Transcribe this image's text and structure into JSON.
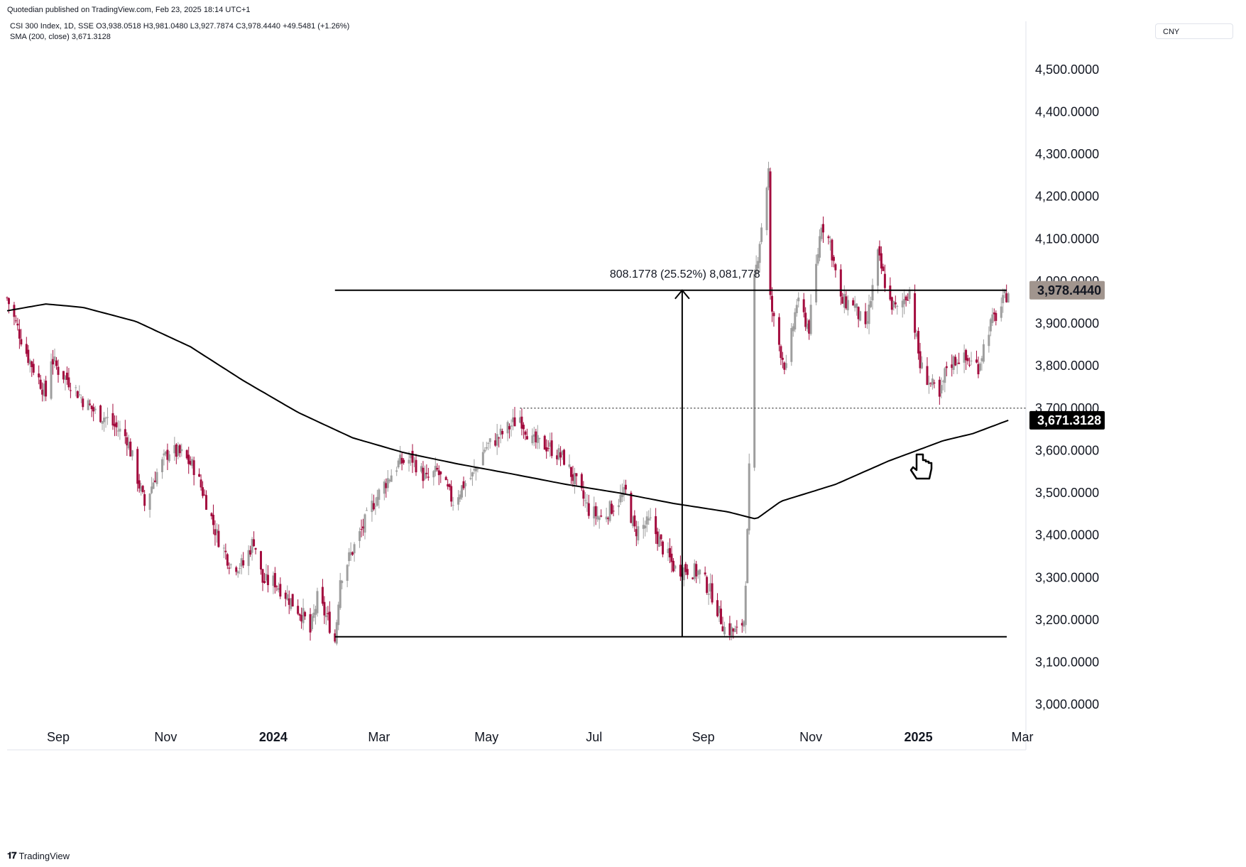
{
  "header": {
    "published": "Quotedian published on TradingView.com, Feb 23, 2025 18:14 UTC+1",
    "ohlc": "CSI 300 Index, 1D, SSE  O3,938.0518  H3,981.0480  L3,927.7874  C3,978.4440  +49.5481 (+1.26%)",
    "sma": "SMA (200, close)  3,671.3128"
  },
  "currency": "CNY",
  "footer": {
    "brand": "TradingView"
  },
  "colors": {
    "up": "#9e9e9e",
    "down": "#a30c3e",
    "line": "#000000",
    "price_label": "#a1958e"
  },
  "chart_data": {
    "type": "candlestick",
    "title": "CSI 300 Index, 1D, SSE",
    "ylim": [
      2950,
      4560
    ],
    "y_ticks": [
      "3,000.0000",
      "3,100.0000",
      "3,200.0000",
      "3,300.0000",
      "3,400.0000",
      "3,500.0000",
      "3,600.0000",
      "3,700.0000",
      "3,800.0000",
      "3,900.0000",
      "4,000.0000",
      "4,100.0000",
      "4,200.0000",
      "4,300.0000",
      "4,400.0000",
      "4,500.0000"
    ],
    "x_ticks": [
      {
        "label": "Sep",
        "date": "2023-09-01",
        "bold": false
      },
      {
        "label": "Nov",
        "date": "2023-11-01",
        "bold": false
      },
      {
        "label": "2024",
        "date": "2024-01-01",
        "bold": true
      },
      {
        "label": "Mar",
        "date": "2024-03-01",
        "bold": false
      },
      {
        "label": "May",
        "date": "2024-05-01",
        "bold": false
      },
      {
        "label": "Jul",
        "date": "2024-07-01",
        "bold": false
      },
      {
        "label": "Sep",
        "date": "2024-09-01",
        "bold": false
      },
      {
        "label": "Nov",
        "date": "2024-11-01",
        "bold": false
      },
      {
        "label": "2025",
        "date": "2025-01-01",
        "bold": true
      },
      {
        "label": "Mar",
        "date": "2025-03-01",
        "bold": false
      }
    ],
    "x_range": [
      "2023-08-03",
      "2025-03-03"
    ],
    "price_anchors": [
      [
        "2023-08-03",
        3960
      ],
      [
        "2023-08-08",
        3900
      ],
      [
        "2023-08-15",
        3820
      ],
      [
        "2023-08-22",
        3760
      ],
      [
        "2023-08-25",
        3730
      ],
      [
        "2023-08-28",
        3820
      ],
      [
        "2023-09-01",
        3790
      ],
      [
        "2023-09-08",
        3760
      ],
      [
        "2023-09-15",
        3720
      ],
      [
        "2023-09-22",
        3690
      ],
      [
        "2023-09-27",
        3680
      ],
      [
        "2023-10-10",
        3630
      ],
      [
        "2023-10-20",
        3470
      ],
      [
        "2023-10-26",
        3540
      ],
      [
        "2023-11-03",
        3600
      ],
      [
        "2023-11-10",
        3590
      ],
      [
        "2023-11-17",
        3560
      ],
      [
        "2023-11-24",
        3480
      ],
      [
        "2023-11-30",
        3400
      ],
      [
        "2023-12-08",
        3330
      ],
      [
        "2023-12-15",
        3330
      ],
      [
        "2023-12-21",
        3390
      ],
      [
        "2023-12-26",
        3290
      ],
      [
        "2024-01-02",
        3290
      ],
      [
        "2024-01-10",
        3250
      ],
      [
        "2024-01-18",
        3210
      ],
      [
        "2024-01-22",
        3170
      ],
      [
        "2024-01-26",
        3250
      ],
      [
        "2024-02-01",
        3200
      ],
      [
        "2024-02-05",
        3150
      ],
      [
        "2024-02-08",
        3300
      ],
      [
        "2024-02-20",
        3410
      ],
      [
        "2024-02-26",
        3470
      ],
      [
        "2024-03-04",
        3520
      ],
      [
        "2024-03-12",
        3570
      ],
      [
        "2024-03-20",
        3580
      ],
      [
        "2024-03-28",
        3530
      ],
      [
        "2024-04-03",
        3550
      ],
      [
        "2024-04-12",
        3480
      ],
      [
        "2024-04-18",
        3520
      ],
      [
        "2024-04-23",
        3540
      ],
      [
        "2024-04-30",
        3605
      ],
      [
        "2024-05-10",
        3640
      ],
      [
        "2024-05-20",
        3680
      ],
      [
        "2024-05-27",
        3620
      ],
      [
        "2024-06-05",
        3610
      ],
      [
        "2024-06-14",
        3580
      ],
      [
        "2024-06-21",
        3520
      ],
      [
        "2024-06-28",
        3460
      ],
      [
        "2024-07-05",
        3440
      ],
      [
        "2024-07-12",
        3470
      ],
      [
        "2024-07-19",
        3500
      ],
      [
        "2024-07-24",
        3410
      ],
      [
        "2024-08-02",
        3430
      ],
      [
        "2024-08-09",
        3370
      ],
      [
        "2024-08-16",
        3320
      ],
      [
        "2024-08-23",
        3320
      ],
      [
        "2024-08-30",
        3310
      ],
      [
        "2024-09-06",
        3260
      ],
      [
        "2024-09-13",
        3180
      ],
      [
        "2024-09-20",
        3170
      ],
      [
        "2024-09-24",
        3200
      ],
      [
        "2024-09-26",
        3400
      ],
      [
        "2024-09-30",
        4000
      ],
      [
        "2024-10-08",
        4260
      ],
      [
        "2024-10-09",
        3955
      ],
      [
        "2024-10-12",
        3880
      ],
      [
        "2024-10-18",
        3790
      ],
      [
        "2024-10-24",
        3950
      ],
      [
        "2024-10-31",
        3890
      ],
      [
        "2024-11-07",
        4140
      ],
      [
        "2024-11-12",
        4090
      ],
      [
        "2024-11-18",
        3950
      ],
      [
        "2024-11-25",
        3950
      ],
      [
        "2024-12-02",
        3880
      ],
      [
        "2024-12-09",
        4060
      ],
      [
        "2024-12-16",
        3950
      ],
      [
        "2024-12-20",
        3930
      ],
      [
        "2024-12-27",
        3980
      ],
      [
        "2025-01-02",
        3800
      ],
      [
        "2025-01-09",
        3750
      ],
      [
        "2025-01-13",
        3720
      ],
      [
        "2025-01-17",
        3800
      ],
      [
        "2025-01-24",
        3820
      ],
      [
        "2025-02-04",
        3800
      ],
      [
        "2025-02-10",
        3890
      ],
      [
        "2025-02-17",
        3940
      ],
      [
        "2025-02-21",
        3978
      ]
    ],
    "sma_200_anchors": [
      [
        "2023-08-03",
        3930
      ],
      [
        "2023-08-25",
        3946
      ],
      [
        "2023-09-15",
        3938
      ],
      [
        "2023-10-15",
        3905
      ],
      [
        "2023-11-15",
        3845
      ],
      [
        "2023-12-15",
        3765
      ],
      [
        "2024-01-15",
        3690
      ],
      [
        "2024-02-15",
        3630
      ],
      [
        "2024-03-15",
        3595
      ],
      [
        "2024-04-15",
        3568
      ],
      [
        "2024-05-15",
        3545
      ],
      [
        "2024-06-15",
        3520
      ],
      [
        "2024-07-15",
        3500
      ],
      [
        "2024-08-15",
        3475
      ],
      [
        "2024-09-15",
        3455
      ],
      [
        "2024-10-01",
        3438
      ],
      [
        "2024-10-15",
        3480
      ],
      [
        "2024-11-15",
        3520
      ],
      [
        "2024-12-15",
        3575
      ],
      [
        "2025-01-15",
        3623
      ],
      [
        "2025-02-01",
        3640
      ],
      [
        "2025-02-21",
        3671.3
      ]
    ],
    "annotations": {
      "resistance_level": 3978.444,
      "support_level": 3160,
      "dotted_level": 3700,
      "dotted_start": "2024-05-20",
      "measure_text": "808.1778 (25.52%) 8,081,778",
      "price_label": "3,978.4440",
      "sma_label": "3,671.3128"
    }
  }
}
